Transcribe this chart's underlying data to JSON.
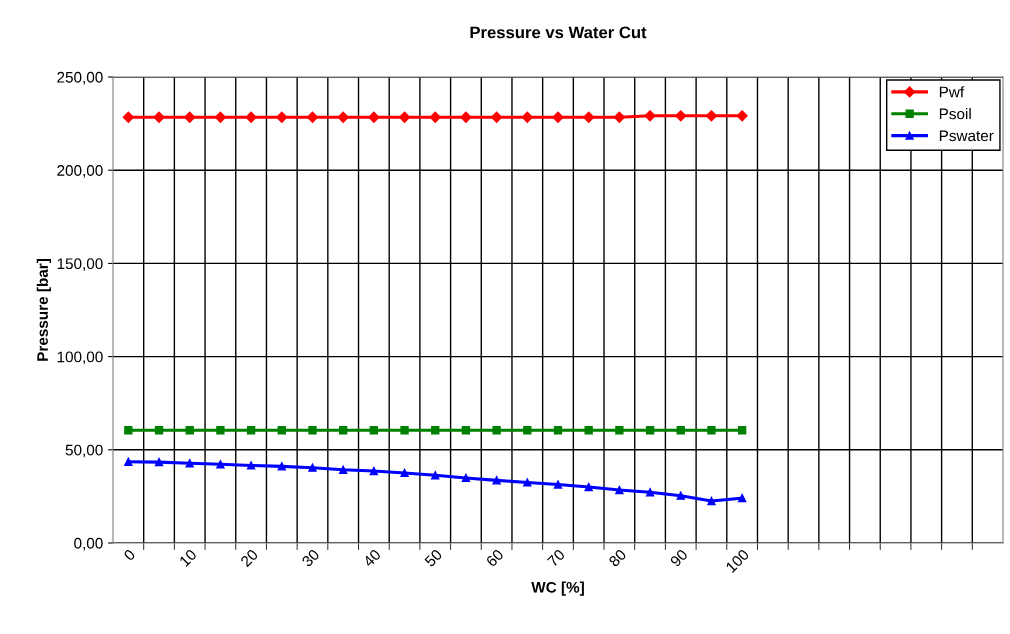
{
  "chart_data": {
    "type": "line",
    "title": "Pressure vs Water Cut",
    "xlabel": "WC [%]",
    "ylabel": "Pressure [bar]",
    "categories": [
      "0",
      null,
      "10",
      null,
      "20",
      null,
      "30",
      null,
      "40",
      null,
      "50",
      null,
      "60",
      null,
      "70",
      null,
      "80",
      null,
      "90",
      null,
      "100",
      null,
      null,
      null,
      null,
      null,
      null,
      null,
      null
    ],
    "ylim": [
      0,
      250
    ],
    "yticks": [
      {
        "value": 0,
        "label": "0,00"
      },
      {
        "value": 50,
        "label": "50,00"
      },
      {
        "value": 100,
        "label": "100,00"
      },
      {
        "value": 150,
        "label": "150,00"
      },
      {
        "value": 200,
        "label": "200,00"
      },
      {
        "value": 250,
        "label": "250,00"
      }
    ],
    "grid": true,
    "legend": "top right",
    "line_style": "solid",
    "series": [
      {
        "name": "Pwf",
        "color": "#ff0000",
        "marker": "diamond",
        "values": [
          228.4,
          228.4,
          228.4,
          228.4,
          228.4,
          228.4,
          228.4,
          228.4,
          228.4,
          228.4,
          228.4,
          228.4,
          228.4,
          228.4,
          228.4,
          228.4,
          228.4,
          229.2,
          229.2,
          229.2,
          229.2,
          null,
          null,
          null,
          null,
          null,
          null,
          null,
          null
        ]
      },
      {
        "name": "Psoil",
        "color": "#008000",
        "marker": "square",
        "values": [
          60.5,
          60.5,
          60.5,
          60.5,
          60.5,
          60.5,
          60.5,
          60.5,
          60.5,
          60.5,
          60.5,
          60.5,
          60.5,
          60.5,
          60.5,
          60.5,
          60.5,
          60.5,
          60.5,
          60.5,
          60.5,
          null,
          null,
          null,
          null,
          null,
          null,
          null,
          null
        ]
      },
      {
        "name": "Pswater",
        "color": "#0000ff",
        "marker": "triangle",
        "values": [
          43.6,
          43.4,
          42.8,
          42.2,
          41.6,
          41.1,
          40.4,
          39.3,
          38.6,
          37.6,
          36.3,
          34.9,
          33.6,
          32.5,
          31.4,
          30.0,
          28.4,
          27.2,
          25.4,
          22.5,
          24.1,
          null,
          null,
          null,
          null,
          null,
          null,
          null,
          null
        ]
      }
    ]
  }
}
